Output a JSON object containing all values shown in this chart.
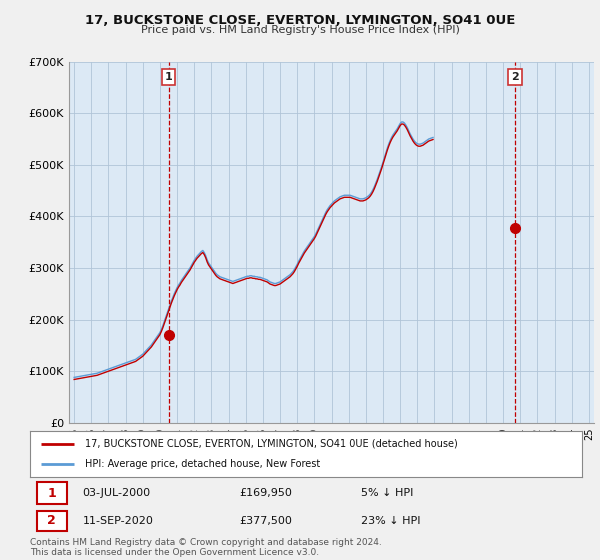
{
  "title": "17, BUCKSTONE CLOSE, EVERTON, LYMINGTON, SO41 0UE",
  "subtitle": "Price paid vs. HM Land Registry's House Price Index (HPI)",
  "ylim": [
    0,
    700000
  ],
  "yticks": [
    0,
    100000,
    200000,
    300000,
    400000,
    500000,
    600000,
    700000
  ],
  "ytick_labels": [
    "£0",
    "£100K",
    "£200K",
    "£300K",
    "£400K",
    "£500K",
    "£600K",
    "£700K"
  ],
  "background_color": "#f0f0f0",
  "plot_bg_color": "#dce9f5",
  "grid_color": "#b0c4d8",
  "hpi_color": "#5b9bd5",
  "price_color": "#c00000",
  "marker1_year": 2000.5,
  "marker1_value": 169950,
  "marker2_year": 2020.7,
  "marker2_value": 377500,
  "annotation1": {
    "num": "1",
    "date": "03-JUL-2000",
    "price": "£169,950",
    "pct": "5% ↓ HPI"
  },
  "annotation2": {
    "num": "2",
    "date": "11-SEP-2020",
    "price": "£377,500",
    "pct": "23% ↓ HPI"
  },
  "legend_line1": "17, BUCKSTONE CLOSE, EVERTON, LYMINGTON, SO41 0UE (detached house)",
  "legend_line2": "HPI: Average price, detached house, New Forest",
  "footer": "Contains HM Land Registry data © Crown copyright and database right 2024.\nThis data is licensed under the Open Government Licence v3.0.",
  "hpi_monthly": {
    "start_year": 1995,
    "start_month": 1,
    "values": [
      88000,
      88500,
      89000,
      89500,
      90000,
      90500,
      91000,
      91500,
      92000,
      92500,
      93000,
      93500,
      94000,
      94500,
      95000,
      95500,
      96000,
      97000,
      98000,
      99000,
      100000,
      101000,
      102000,
      103000,
      104000,
      105000,
      106000,
      107000,
      108000,
      109000,
      110000,
      111000,
      112000,
      113000,
      114000,
      115000,
      116000,
      117000,
      118000,
      119000,
      120000,
      121000,
      122000,
      123000,
      125000,
      127000,
      129000,
      131000,
      133000,
      136000,
      139000,
      142000,
      145000,
      148000,
      151000,
      155000,
      159000,
      163000,
      167000,
      171000,
      175000,
      181000,
      188000,
      196000,
      204000,
      212000,
      220000,
      228000,
      236000,
      243000,
      250000,
      256000,
      262000,
      267000,
      271000,
      276000,
      280000,
      284000,
      288000,
      292000,
      296000,
      300000,
      305000,
      310000,
      315000,
      319000,
      323000,
      326000,
      329000,
      332000,
      334000,
      330000,
      324000,
      316000,
      310000,
      306000,
      302000,
      298000,
      294000,
      290000,
      287000,
      285000,
      283000,
      282000,
      281000,
      280000,
      279000,
      278000,
      277000,
      276000,
      275000,
      274000,
      275000,
      276000,
      277000,
      278000,
      279000,
      280000,
      281000,
      282000,
      283000,
      284000,
      284000,
      285000,
      285000,
      284000,
      284000,
      283000,
      283000,
      282000,
      282000,
      281000,
      280000,
      279000,
      278000,
      277000,
      275000,
      273000,
      272000,
      271000,
      270000,
      270000,
      271000,
      272000,
      273000,
      275000,
      277000,
      279000,
      281000,
      283000,
      285000,
      287000,
      290000,
      293000,
      297000,
      302000,
      307000,
      313000,
      318000,
      323000,
      328000,
      333000,
      337000,
      341000,
      345000,
      349000,
      353000,
      357000,
      361000,
      366000,
      372000,
      378000,
      384000,
      390000,
      396000,
      402000,
      408000,
      413000,
      417000,
      421000,
      424000,
      427000,
      430000,
      432000,
      434000,
      436000,
      438000,
      439000,
      440000,
      441000,
      441000,
      441000,
      441000,
      441000,
      440000,
      439000,
      438000,
      437000,
      436000,
      435000,
      434000,
      434000,
      434000,
      435000,
      436000,
      438000,
      440000,
      443000,
      447000,
      452000,
      458000,
      465000,
      472000,
      480000,
      488000,
      496000,
      505000,
      514000,
      523000,
      532000,
      540000,
      547000,
      553000,
      558000,
      562000,
      566000,
      570000,
      575000,
      580000,
      583000,
      583000,
      581000,
      577000,
      572000,
      566000,
      560000,
      555000,
      550000,
      546000,
      543000,
      541000,
      540000,
      540000,
      541000,
      542000,
      544000,
      546000,
      548000,
      550000,
      551000,
      552000,
      553000
    ]
  },
  "price_monthly": {
    "start_year": 1995,
    "start_month": 1,
    "values": [
      84000,
      84500,
      85000,
      85500,
      86000,
      86500,
      87000,
      87500,
      88000,
      88500,
      89000,
      89500,
      90000,
      90500,
      91000,
      91500,
      92000,
      93000,
      94000,
      95000,
      96000,
      97000,
      98000,
      99000,
      100000,
      101000,
      102000,
      103000,
      104000,
      105000,
      106000,
      107000,
      108000,
      109000,
      110000,
      111000,
      112000,
      113000,
      114000,
      115000,
      116000,
      117000,
      118000,
      119000,
      121000,
      123000,
      125000,
      127000,
      129000,
      132000,
      135000,
      138000,
      141000,
      144000,
      147000,
      151000,
      155000,
      159000,
      163000,
      167000,
      171000,
      177000,
      184000,
      192000,
      200000,
      208000,
      216000,
      224000,
      232000,
      239000,
      246000,
      252000,
      258000,
      263000,
      267000,
      272000,
      276000,
      280000,
      284000,
      288000,
      292000,
      296000,
      301000,
      306000,
      311000,
      315000,
      319000,
      322000,
      325000,
      328000,
      330000,
      326000,
      320000,
      312000,
      306000,
      302000,
      298000,
      294000,
      290000,
      286000,
      283000,
      281000,
      279000,
      278000,
      277000,
      276000,
      275000,
      274000,
      273000,
      272000,
      271000,
      270000,
      271000,
      272000,
      273000,
      274000,
      275000,
      276000,
      277000,
      278000,
      279000,
      280000,
      280000,
      281000,
      281000,
      280000,
      280000,
      279000,
      279000,
      278000,
      278000,
      277000,
      276000,
      275000,
      274000,
      273000,
      271000,
      269000,
      268000,
      267000,
      266000,
      266000,
      267000,
      268000,
      269000,
      271000,
      273000,
      275000,
      277000,
      279000,
      281000,
      283000,
      286000,
      289000,
      293000,
      298000,
      303000,
      309000,
      314000,
      319000,
      324000,
      329000,
      333000,
      337000,
      341000,
      345000,
      349000,
      353000,
      357000,
      362000,
      368000,
      374000,
      380000,
      386000,
      392000,
      398000,
      404000,
      409000,
      413000,
      417000,
      420000,
      423000,
      426000,
      428000,
      430000,
      432000,
      434000,
      435000,
      436000,
      437000,
      437000,
      437000,
      437000,
      437000,
      436000,
      435000,
      434000,
      433000,
      432000,
      431000,
      430000,
      430000,
      430000,
      431000,
      432000,
      434000,
      436000,
      439000,
      443000,
      448000,
      454000,
      461000,
      468000,
      476000,
      484000,
      492000,
      501000,
      510000,
      519000,
      528000,
      536000,
      543000,
      549000,
      554000,
      558000,
      562000,
      566000,
      571000,
      576000,
      579000,
      579000,
      577000,
      573000,
      568000,
      562000,
      556000,
      551000,
      546000,
      542000,
      539000,
      537000,
      536000,
      536000,
      537000,
      538000,
      540000,
      542000,
      544000,
      546000,
      547000,
      548000,
      549000
    ]
  }
}
